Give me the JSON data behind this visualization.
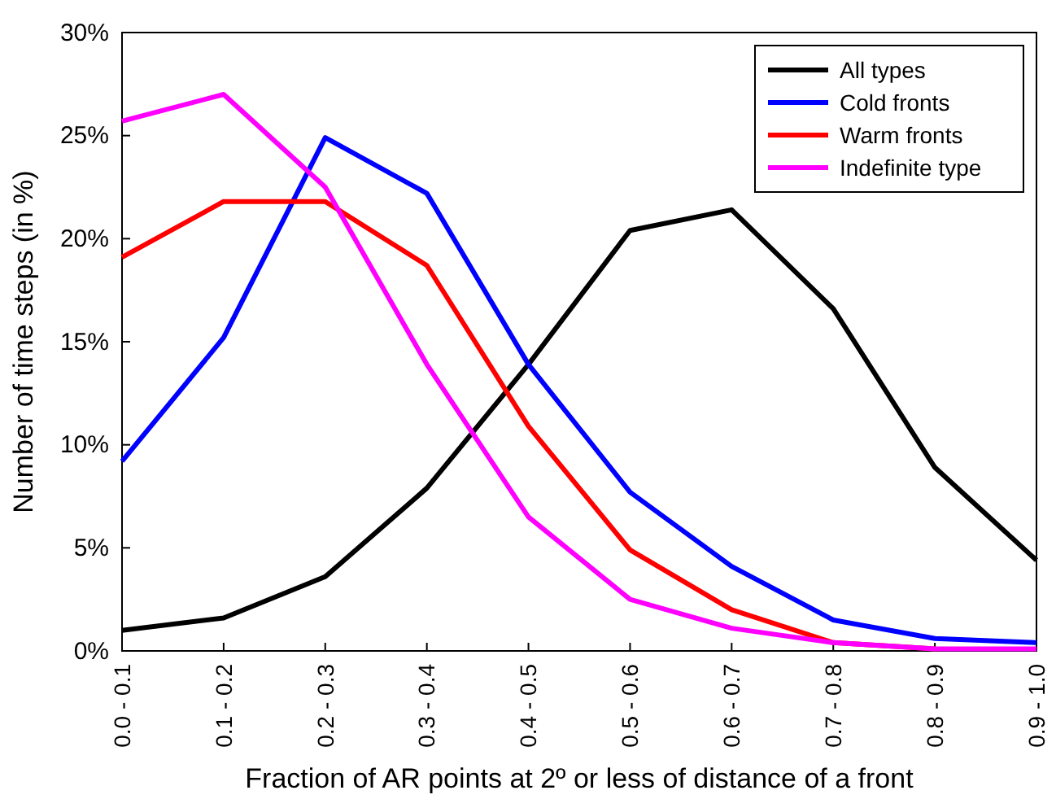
{
  "chart_data": {
    "type": "line",
    "xlabel": "Fraction of AR points at 2º or less of distance of a front",
    "ylabel": "Number of time steps (in %)",
    "categories": [
      "0.0 - 0.1",
      "0.1 - 0.2",
      "0.2 - 0.3",
      "0.3 - 0.4",
      "0.4 - 0.5",
      "0.5 - 0.6",
      "0.6 - 0.7",
      "0.7 - 0.8",
      "0.8 - 0.9",
      "0.9 - 1.0"
    ],
    "series": [
      {
        "name": "All types",
        "color": "#000000",
        "values": [
          1.0,
          1.6,
          3.6,
          7.9,
          13.9,
          20.4,
          21.4,
          16.6,
          8.9,
          4.4
        ]
      },
      {
        "name": "Cold fronts",
        "color": "#0000ff",
        "values": [
          9.2,
          15.2,
          24.9,
          22.2,
          13.9,
          7.7,
          4.1,
          1.5,
          0.6,
          0.4
        ]
      },
      {
        "name": "Warm fronts",
        "color": "#ff0000",
        "values": [
          19.1,
          21.8,
          21.8,
          18.7,
          10.9,
          4.9,
          2.0,
          0.4,
          0.1,
          null
        ]
      },
      {
        "name": "Indefinite type",
        "color": "#ff00ff",
        "values": [
          25.7,
          27.0,
          22.5,
          13.9,
          6.5,
          2.5,
          1.1,
          0.4,
          0.1,
          0.1
        ]
      }
    ],
    "ylim": [
      0,
      30
    ],
    "yticks": [
      {
        "value": 0,
        "label": "0%"
      },
      {
        "value": 5,
        "label": "5%"
      },
      {
        "value": 10,
        "label": "10%"
      },
      {
        "value": 15,
        "label": "15%"
      },
      {
        "value": 20,
        "label": "20%"
      },
      {
        "value": 25,
        "label": "25%"
      },
      {
        "value": 30,
        "label": "30%"
      }
    ],
    "grid": false,
    "legend": "top right",
    "marker": "none",
    "line_style": "solid"
  }
}
